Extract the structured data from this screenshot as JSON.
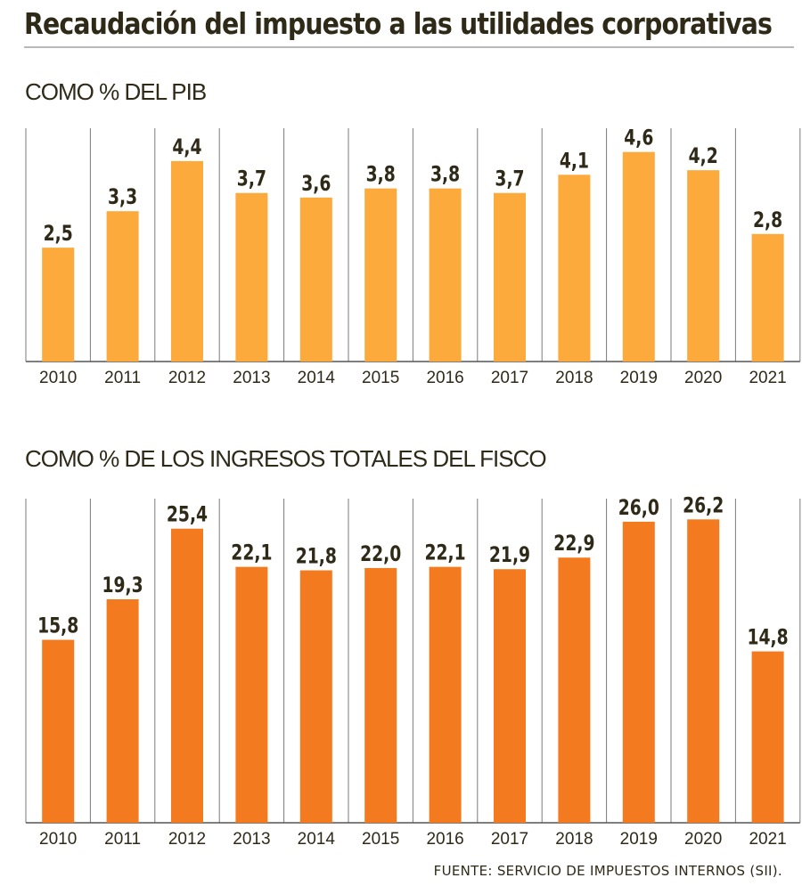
{
  "title": "Recaudación del impuesto a las utilidades corporativas",
  "source": "FUENTE: SERVICIO DE IMPUESTOS INTERNOS (SII).",
  "colors": {
    "panel1": "#FDAA3C",
    "panel2": "#F47A20",
    "text": "#2f2a18",
    "divider": "#7a7a7a"
  },
  "chart_data": [
    {
      "type": "bar",
      "title": "COMO % DEL PIB",
      "categories": [
        "2010",
        "2011",
        "2012",
        "2013",
        "2014",
        "2015",
        "2016",
        "2017",
        "2018",
        "2019",
        "2020",
        "2021"
      ],
      "values": [
        2.5,
        3.3,
        4.4,
        3.7,
        3.6,
        3.8,
        3.8,
        3.7,
        4.1,
        4.6,
        4.2,
        2.8
      ],
      "labels": [
        "2,5",
        "3,3",
        "4,4",
        "3,7",
        "3,6",
        "3,8",
        "3,8",
        "3,7",
        "4,1",
        "4,6",
        "4,2",
        "2,8"
      ],
      "ylim": [
        0,
        5.2
      ],
      "grid": false
    },
    {
      "type": "bar",
      "title": "COMO % DE LOS INGRESOS TOTALES DEL FISCO",
      "categories": [
        "2010",
        "2011",
        "2012",
        "2013",
        "2014",
        "2015",
        "2016",
        "2017",
        "2018",
        "2019",
        "2020",
        "2021"
      ],
      "values": [
        15.8,
        19.3,
        25.4,
        22.1,
        21.8,
        22.0,
        22.1,
        21.9,
        22.9,
        26.0,
        26.2,
        14.8
      ],
      "labels": [
        "15,8",
        "19,3",
        "25,4",
        "22,1",
        "21,8",
        "22,0",
        "22,1",
        "21,9",
        "22,9",
        "26,0",
        "26,2",
        "14,8"
      ],
      "ylim": [
        0,
        28.3
      ],
      "grid": false
    }
  ]
}
